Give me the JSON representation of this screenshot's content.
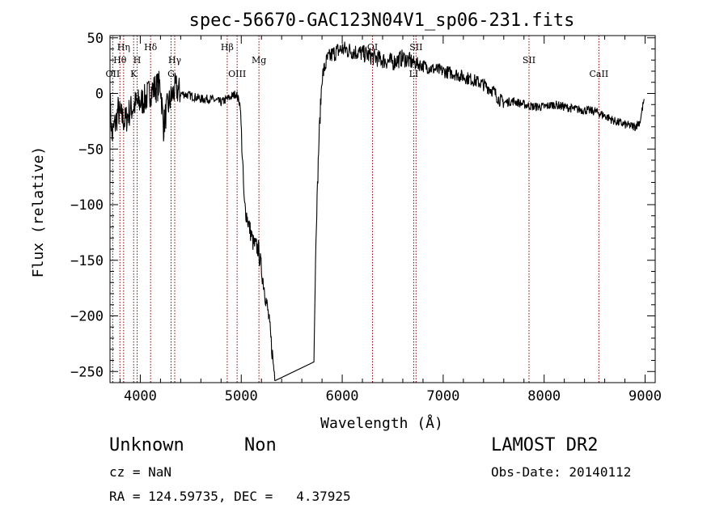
{
  "chart_data": {
    "type": "line",
    "title": "spec-56670-GAC123N04V1_sp06-231.fits",
    "xlabel": "Wavelength (Å)",
    "ylabel": "Flux (relative)",
    "xlim": [
      3700,
      9100
    ],
    "ylim": [
      -260,
      52
    ],
    "x_ticks": [
      4000,
      5000,
      6000,
      7000,
      8000,
      9000
    ],
    "y_ticks": [
      50,
      0,
      -50,
      -100,
      -150,
      -200,
      -250
    ],
    "y_tick_labels": [
      "50",
      "0",
      "−50",
      "−100",
      "−150",
      "−200",
      "−250"
    ],
    "grid": false,
    "line_color": "#000000",
    "marker_color": "#8b0000",
    "spectral_lines": [
      {
        "label": "OII",
        "wavelength": 3727,
        "row": 3
      },
      {
        "label": "Hθ",
        "wavelength": 3798,
        "row": 1
      },
      {
        "label": "Hη",
        "wavelength": 3835,
        "row": 0
      },
      {
        "label": "K",
        "wavelength": 3934,
        "row": 3
      },
      {
        "label": "H",
        "wavelength": 3969,
        "row": 1
      },
      {
        "label": "Hδ",
        "wavelength": 4102,
        "row": 0
      },
      {
        "label": "G",
        "wavelength": 4305,
        "row": 2
      },
      {
        "label": "Hγ",
        "wavelength": 4341,
        "row": 1
      },
      {
        "label": "Hβ",
        "wavelength": 4861,
        "row": 0
      },
      {
        "label": "OIII",
        "wavelength": 4959,
        "row": 3
      },
      {
        "label": "Mg",
        "wavelength": 5175,
        "row": 1
      },
      {
        "label": "OI",
        "wavelength": 6300,
        "row": 0
      },
      {
        "label": "LI",
        "wavelength": 6708,
        "row": 2
      },
      {
        "label": "SII",
        "wavelength": 6731,
        "row": 0
      },
      {
        "label": "SII",
        "wavelength": 7850,
        "row": 1
      },
      {
        "label": "CaII",
        "wavelength": 8542,
        "row": 2
      }
    ],
    "spectrum_anchors": [
      [
        3700,
        -5
      ],
      [
        3720,
        -40
      ],
      [
        3740,
        -30
      ],
      [
        3760,
        -25
      ],
      [
        3780,
        -15
      ],
      [
        3800,
        -20
      ],
      [
        3850,
        -25
      ],
      [
        3900,
        -15
      ],
      [
        3950,
        -10
      ],
      [
        4000,
        -8
      ],
      [
        4050,
        -5
      ],
      [
        4100,
        2
      ],
      [
        4150,
        5
      ],
      [
        4200,
        8
      ],
      [
        4230,
        -30
      ],
      [
        4260,
        -15
      ],
      [
        4300,
        -5
      ],
      [
        4350,
        5
      ],
      [
        4400,
        0
      ],
      [
        4500,
        -2
      ],
      [
        4600,
        -5
      ],
      [
        4700,
        -5
      ],
      [
        4800,
        -8
      ],
      [
        4900,
        -3
      ],
      [
        4950,
        0
      ],
      [
        4990,
        -10
      ],
      [
        5030,
        -100
      ],
      [
        5080,
        -120
      ],
      [
        5120,
        -135
      ],
      [
        5170,
        -140
      ],
      [
        5220,
        -170
      ],
      [
        5270,
        -200
      ],
      [
        5320,
        -245
      ],
      [
        5340,
        -258
      ],
      [
        5720,
        -238
      ],
      [
        5740,
        -130
      ],
      [
        5770,
        -40
      ],
      [
        5800,
        15
      ],
      [
        5850,
        30
      ],
      [
        5900,
        35
      ],
      [
        5950,
        38
      ],
      [
        6000,
        40
      ],
      [
        6100,
        38
      ],
      [
        6200,
        36
      ],
      [
        6300,
        33
      ],
      [
        6400,
        30
      ],
      [
        6500,
        28
      ],
      [
        6600,
        32
      ],
      [
        6700,
        28
      ],
      [
        6800,
        25
      ],
      [
        6900,
        22
      ],
      [
        7000,
        20
      ],
      [
        7100,
        18
      ],
      [
        7200,
        15
      ],
      [
        7300,
        12
      ],
      [
        7400,
        8
      ],
      [
        7500,
        2
      ],
      [
        7550,
        -5
      ],
      [
        7600,
        -8
      ],
      [
        7700,
        -7
      ],
      [
        7800,
        -10
      ],
      [
        7900,
        -12
      ],
      [
        8000,
        -12
      ],
      [
        8100,
        -10
      ],
      [
        8200,
        -12
      ],
      [
        8300,
        -14
      ],
      [
        8400,
        -15
      ],
      [
        8500,
        -16
      ],
      [
        8600,
        -20
      ],
      [
        8700,
        -25
      ],
      [
        8800,
        -28
      ],
      [
        8900,
        -30
      ],
      [
        8950,
        -25
      ],
      [
        8990,
        -5
      ]
    ]
  },
  "info": {
    "class_label": "Unknown",
    "subclass_label": "Non",
    "survey": "LAMOST DR2",
    "cz": "cz = NaN",
    "obs_date": "Obs-Date: 20140112",
    "coords": "RA = 124.59735, DEC =   4.37925"
  }
}
